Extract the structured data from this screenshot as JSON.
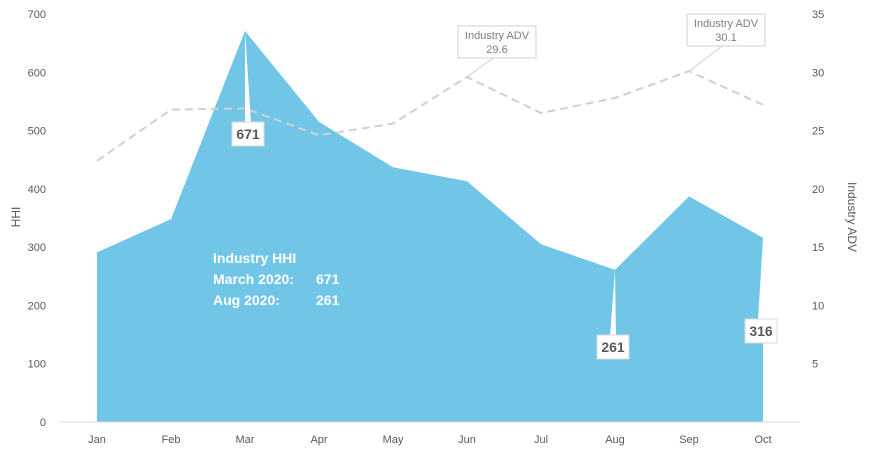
{
  "chart_data": {
    "type": "area",
    "categories": [
      "Jan",
      "Feb",
      "Mar",
      "Apr",
      "May",
      "Jun",
      "Jul",
      "Aug",
      "Sep",
      "Oct"
    ],
    "series": [
      {
        "name": "",
        "chart_type": "area",
        "axis": "left",
        "color": "#71c5e6",
        "values": [
          291,
          348,
          671,
          515,
          437,
          413,
          305,
          261,
          387,
          316
        ]
      },
      {
        "name": "",
        "chart_type": "line",
        "line_style": "dashed",
        "axis": "right",
        "color": "#d0d0d0",
        "values": [
          22.4,
          26.8,
          26.9,
          24.6,
          25.6,
          29.6,
          26.5,
          27.8,
          30.1,
          27.2
        ]
      }
    ],
    "ylabel": "HHI",
    "ylim": [
      0,
      700
    ],
    "yticks": [
      "0",
      "100",
      "200",
      "300",
      "400",
      "500",
      "600",
      "700"
    ],
    "y2label": "Industry ADV",
    "y2lim": [
      0,
      35
    ],
    "y2ticks": [
      "5",
      "10",
      "15",
      "20",
      "25",
      "30",
      "35"
    ],
    "grid": false,
    "callouts": [
      {
        "label": "671",
        "category": "Mar",
        "value": 671
      },
      {
        "label": "261",
        "category": "Aug",
        "value": 261
      },
      {
        "label": "316",
        "category": "Oct",
        "value": 316
      }
    ],
    "adv_callouts": [
      {
        "title": "Industry ADV",
        "label": "29.6",
        "category": "Jun",
        "value": 29.6
      },
      {
        "title": "Industry ADV",
        "label": "30.1",
        "category": "Sep",
        "value": 30.1
      }
    ],
    "annotation": {
      "title": "Industry HHI",
      "lines": [
        {
          "label": "March 2020:",
          "value": "671"
        },
        {
          "label": "Aug 2020:",
          "value": "261"
        }
      ]
    }
  }
}
